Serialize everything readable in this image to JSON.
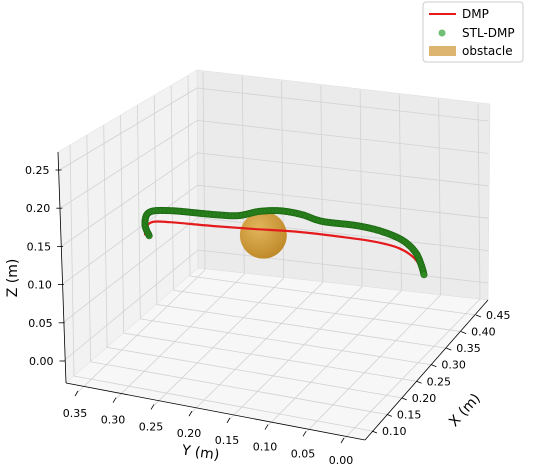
{
  "chart_data": {
    "type": "line3d",
    "xlabel": "X (m)",
    "ylabel": "Y (m)",
    "zlabel": "Z (m)",
    "x_ticks": [
      "0.10",
      "0.15",
      "0.20",
      "0.25",
      "0.30",
      "0.35",
      "0.40",
      "0.45"
    ],
    "y_ticks": [
      "0.35",
      "0.30",
      "0.25",
      "0.20",
      "0.15",
      "0.10",
      "0.05",
      "0.00"
    ],
    "z_ticks": [
      "0.00",
      "0.05",
      "0.10",
      "0.15",
      "0.20",
      "0.25"
    ],
    "grid": true,
    "legend_placement": "top-right",
    "legend": [
      {
        "label": "DMP",
        "color": "#e41a1c",
        "style": "line"
      },
      {
        "label": "STL-DMP",
        "color": "#4caf50",
        "style": "marker"
      },
      {
        "label": "obstacle",
        "color": "#d4a24c",
        "style": "patch"
      }
    ],
    "series": [
      {
        "name": "DMP",
        "color": "#e41a1c",
        "points": [
          {
            "y": 0.33,
            "z": 0.11
          },
          {
            "y": 0.328,
            "z": 0.135
          },
          {
            "y": 0.32,
            "z": 0.15
          },
          {
            "y": 0.3,
            "z": 0.153
          },
          {
            "y": 0.25,
            "z": 0.153
          },
          {
            "y": 0.2,
            "z": 0.155
          },
          {
            "y": 0.15,
            "z": 0.158
          },
          {
            "y": 0.1,
            "z": 0.155
          },
          {
            "y": 0.06,
            "z": 0.15
          },
          {
            "y": 0.03,
            "z": 0.138
          },
          {
            "y": 0.012,
            "z": 0.115
          },
          {
            "y": 0.003,
            "z": 0.085
          },
          {
            "y": 0.0,
            "z": 0.065
          }
        ]
      },
      {
        "name": "STL-DMP",
        "color": "#2e8b22",
        "points": [
          {
            "y": 0.325,
            "z": 0.11
          },
          {
            "y": 0.33,
            "z": 0.14
          },
          {
            "y": 0.325,
            "z": 0.175
          },
          {
            "y": 0.3,
            "z": 0.185
          },
          {
            "y": 0.25,
            "z": 0.185
          },
          {
            "y": 0.22,
            "z": 0.188
          },
          {
            "y": 0.195,
            "z": 0.205
          },
          {
            "y": 0.17,
            "z": 0.212
          },
          {
            "y": 0.145,
            "z": 0.207
          },
          {
            "y": 0.12,
            "z": 0.193
          },
          {
            "y": 0.08,
            "z": 0.19
          },
          {
            "y": 0.05,
            "z": 0.18
          },
          {
            "y": 0.025,
            "z": 0.16
          },
          {
            "y": 0.01,
            "z": 0.13
          },
          {
            "y": 0.003,
            "z": 0.095
          },
          {
            "y": 0.0,
            "z": 0.07
          }
        ]
      }
    ],
    "obstacle": {
      "y": 0.19,
      "z": 0.14,
      "radius": 0.035,
      "color": "#d4a24c"
    }
  }
}
